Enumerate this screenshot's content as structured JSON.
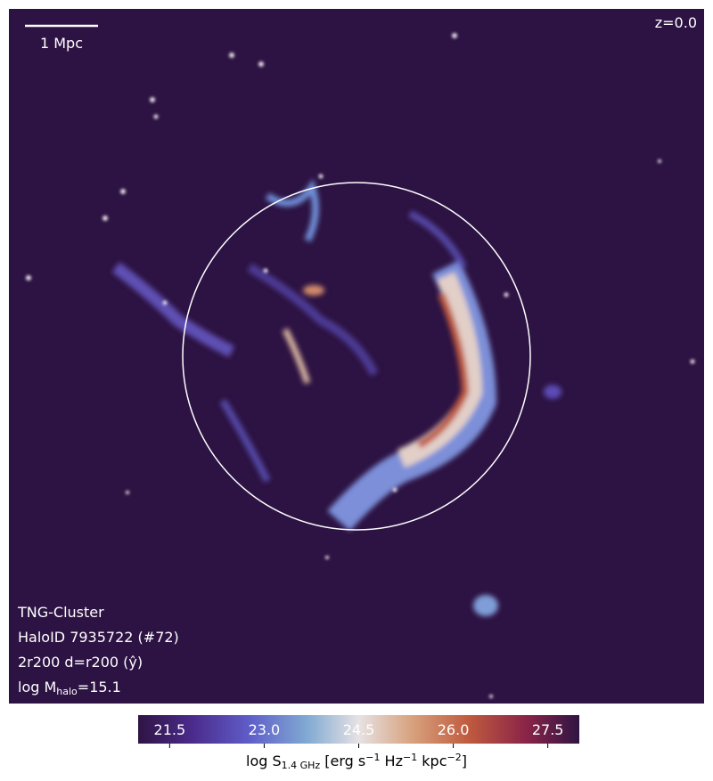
{
  "scale_bar": "1 Mpc",
  "redshift": "z=0.0",
  "info": {
    "simulation": "TNG-Cluster",
    "halo": "HaloID 7935722 (#72)",
    "projection": "2r200 d=r200 (ŷ)",
    "mass_prefix": "log M",
    "mass_sub": "halo",
    "mass_suffix": "=15.1"
  },
  "colorbar": {
    "lim": [
      21,
      28
    ],
    "ticks": [
      21.5,
      23.0,
      24.5,
      26.0,
      27.5
    ],
    "tick_labels": [
      "21.5",
      "23.0",
      "24.5",
      "26.0",
      "27.5"
    ],
    "label": {
      "prefix": "log S",
      "sub": "1.4 GHz",
      "unit1": " [erg s",
      "exp1": "−1",
      "unit2": " Hz",
      "exp2": "−1",
      "unit3": " kpc",
      "exp3": "−2",
      "close": "]"
    }
  }
}
